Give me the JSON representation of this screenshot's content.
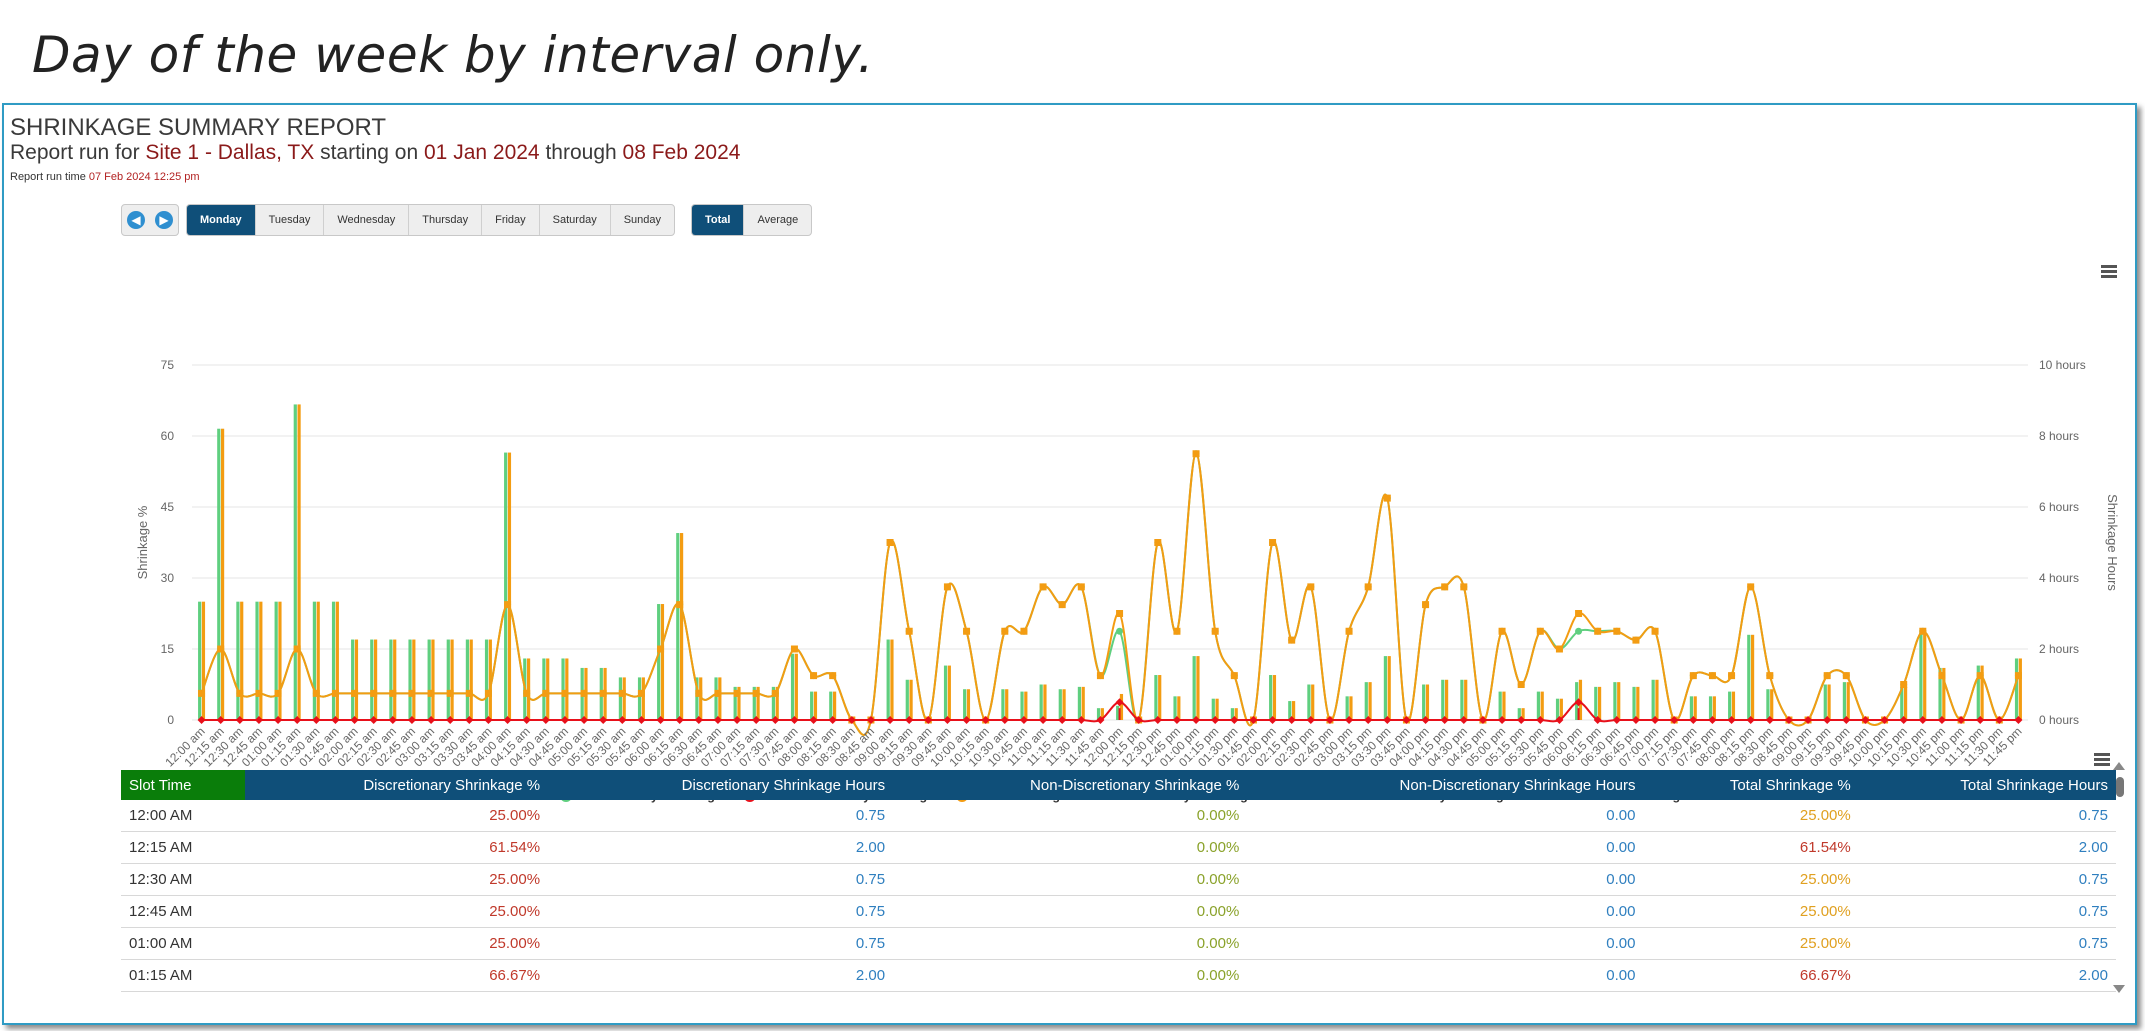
{
  "caption": "Day of the week by interval only.",
  "report": {
    "title": "SHRINKAGE SUMMARY REPORT",
    "run_for_label": "Report run for",
    "site": "Site 1 - Dallas, TX",
    "starting_label": "starting on",
    "start_date": "01 Jan 2024",
    "through_label": "through",
    "end_date": "08 Feb 2024",
    "run_time_label": "Report run time",
    "run_time": "07 Feb 2024 12:25 pm"
  },
  "nav": {
    "prev_icon": "arrow-left-icon",
    "next_icon": "arrow-right-icon"
  },
  "days": [
    "Monday",
    "Tuesday",
    "Wednesday",
    "Thursday",
    "Friday",
    "Saturday",
    "Sunday"
  ],
  "selected_day": "Monday",
  "modes": [
    "Total",
    "Average"
  ],
  "selected_mode": "Total",
  "colors": {
    "discretionary": "#5fcf7f",
    "non_discretionary": "#e8101a",
    "total": "#f39c12",
    "header": "#0f4f79",
    "slot_header": "#0a7d0a"
  },
  "chart_data": {
    "type": "bar",
    "xlabel": "",
    "ylabel": "Shrinkage %",
    "y2label": "Shrinkage Hours",
    "ylim": [
      0,
      75
    ],
    "y_ticks": [
      "0",
      "15",
      "30",
      "45",
      "60",
      "75"
    ],
    "y2lim": [
      0,
      10
    ],
    "y2_ticks": [
      "0 hours",
      "2 hours",
      "4 hours",
      "6 hours",
      "8 hours",
      "10 hours"
    ],
    "grid": true,
    "legend_position": "bottom",
    "categories": [
      "12:00 am",
      "12:15 am",
      "12:30 am",
      "12:45 am",
      "01:00 am",
      "01:15 am",
      "01:30 am",
      "01:45 am",
      "02:00 am",
      "02:15 am",
      "02:30 am",
      "02:45 am",
      "03:00 am",
      "03:15 am",
      "03:30 am",
      "03:45 am",
      "04:00 am",
      "04:15 am",
      "04:30 am",
      "04:45 am",
      "05:00 am",
      "05:15 am",
      "05:30 am",
      "05:45 am",
      "06:00 am",
      "06:15 am",
      "06:30 am",
      "06:45 am",
      "07:00 am",
      "07:15 am",
      "07:30 am",
      "07:45 am",
      "08:00 am",
      "08:15 am",
      "08:30 am",
      "08:45 am",
      "09:00 am",
      "09:15 am",
      "09:30 am",
      "09:45 am",
      "10:00 am",
      "10:15 am",
      "10:30 am",
      "10:45 am",
      "11:00 am",
      "11:15 am",
      "11:30 am",
      "11:45 am",
      "12:00 pm",
      "12:15 pm",
      "12:30 pm",
      "12:45 pm",
      "01:00 pm",
      "01:15 pm",
      "01:30 pm",
      "01:45 pm",
      "02:00 pm",
      "02:15 pm",
      "02:30 pm",
      "02:45 pm",
      "03:00 pm",
      "03:15 pm",
      "03:30 pm",
      "03:45 pm",
      "04:00 pm",
      "04:15 pm",
      "04:30 pm",
      "04:45 pm",
      "05:00 pm",
      "05:15 pm",
      "05:30 pm",
      "05:45 pm",
      "06:00 pm",
      "06:15 pm",
      "06:30 pm",
      "06:45 pm",
      "07:00 pm",
      "07:15 pm",
      "07:30 pm",
      "07:45 pm",
      "08:00 pm",
      "08:15 pm",
      "08:30 pm",
      "08:45 pm",
      "09:00 pm",
      "09:15 pm",
      "09:30 pm",
      "09:45 pm",
      "10:00 pm",
      "10:15 pm",
      "10:30 pm",
      "10:45 pm",
      "11:00 pm",
      "11:15 pm",
      "11:30 pm",
      "11:45 pm"
    ],
    "series": [
      {
        "name": "Discretionary Shrinkage",
        "kind": "bar",
        "axis": "left",
        "values": [
          25,
          61.54,
          25,
          25,
          25,
          66.67,
          25,
          25,
          17,
          17,
          17,
          17,
          17,
          17,
          17,
          17,
          56.5,
          13,
          13,
          13,
          11,
          11,
          9,
          9,
          24.5,
          39.5,
          9,
          9,
          7,
          7,
          7,
          14,
          6,
          6,
          0,
          0,
          17,
          8.5,
          0,
          11.5,
          6.5,
          0,
          6.5,
          6,
          7.5,
          6.5,
          7,
          2.5,
          3,
          0,
          9.5,
          5,
          13.5,
          4.5,
          2.5,
          0,
          9.5,
          4,
          7.5,
          0,
          5,
          8,
          13.5,
          0,
          7.5,
          8.5,
          8.5,
          0,
          6,
          2.5,
          6,
          4.5,
          8,
          7,
          8,
          7,
          8.5,
          0,
          5,
          5,
          6,
          18,
          6.5,
          0,
          0,
          7.5,
          8,
          0,
          0,
          7,
          19,
          11,
          0,
          11.5,
          0,
          13
        ]
      },
      {
        "name": "Non-Discretionary Shrinkage",
        "kind": "bar",
        "axis": "left",
        "values": [
          0,
          0,
          0,
          0,
          0,
          0,
          0,
          0,
          0,
          0,
          0,
          0,
          0,
          0,
          0,
          0,
          0,
          0,
          0,
          0,
          0,
          0,
          0,
          0,
          0,
          0,
          0,
          0,
          0,
          0,
          0,
          0,
          0,
          0,
          0,
          0,
          0,
          0,
          0,
          0,
          0,
          0,
          0,
          0,
          0,
          0,
          0,
          0,
          2.5,
          0,
          0,
          0,
          0,
          0,
          0,
          0,
          0,
          0,
          0,
          0,
          0,
          0,
          0,
          0,
          0,
          0,
          0,
          0,
          0,
          0,
          0,
          0,
          2.5,
          0,
          0,
          0,
          0,
          0,
          0,
          0,
          0,
          0,
          0,
          0,
          0,
          0,
          0,
          0,
          0,
          0,
          0,
          0,
          0,
          0,
          0,
          0
        ]
      },
      {
        "name": "Total Shrinkage",
        "kind": "bar",
        "axis": "left",
        "values": [
          25,
          61.54,
          25,
          25,
          25,
          66.67,
          25,
          25,
          17,
          17,
          17,
          17,
          17,
          17,
          17,
          17,
          56.5,
          13,
          13,
          13,
          11,
          11,
          9,
          9,
          24.5,
          39.5,
          9,
          9,
          7,
          7,
          7,
          14,
          6,
          6,
          0,
          0,
          17,
          8.5,
          0,
          11.5,
          6.5,
          0,
          6.5,
          6,
          7.5,
          6.5,
          7,
          2.5,
          5.5,
          0,
          9.5,
          5,
          13.5,
          4.5,
          2.5,
          0,
          9.5,
          4,
          7.5,
          0,
          5,
          8,
          13.5,
          0,
          7.5,
          8.5,
          8.5,
          0,
          6,
          2.5,
          6,
          4.5,
          8.5,
          7,
          8,
          7,
          8.5,
          0,
          5,
          5,
          6,
          18,
          6.5,
          0,
          0,
          7.5,
          8,
          0,
          0,
          7,
          19,
          11,
          0,
          11.5,
          0,
          13
        ]
      },
      {
        "name": "Discretionary Shrinkage Hours",
        "kind": "line",
        "axis": "right",
        "marker": "circle",
        "values": [
          0.75,
          2,
          0.75,
          0.75,
          0.75,
          2,
          0.75,
          0.75,
          0.75,
          0.75,
          0.75,
          0.75,
          0.75,
          0.75,
          0.75,
          0.75,
          3.25,
          0.75,
          0.75,
          0.75,
          0.75,
          0.75,
          0.75,
          0.75,
          2,
          3.25,
          0.75,
          0.75,
          0.75,
          0.75,
          0.75,
          2,
          1.25,
          1.25,
          0,
          0,
          5,
          2.5,
          0,
          3.75,
          2.5,
          0,
          2.5,
          2.5,
          3.75,
          3.25,
          3.75,
          1.25,
          2.5,
          0,
          5,
          2.5,
          7.5,
          2.5,
          1.25,
          0,
          5,
          2.25,
          3.75,
          0,
          2.5,
          3.75,
          6.25,
          0,
          3.25,
          3.75,
          3.75,
          0,
          2.5,
          1,
          2.5,
          2,
          2.5,
          2.5,
          2.5,
          2.25,
          2.5,
          0,
          1.25,
          1.25,
          1.25,
          3.75,
          1.25,
          0,
          0,
          1.25,
          1.25,
          0,
          0,
          1,
          2.5,
          1.25,
          0,
          1.25,
          0,
          1.25
        ]
      },
      {
        "name": "Non-Discretionary Shrinkage Hours",
        "kind": "line",
        "axis": "right",
        "marker": "diamond",
        "values": [
          0,
          0,
          0,
          0,
          0,
          0,
          0,
          0,
          0,
          0,
          0,
          0,
          0,
          0,
          0,
          0,
          0,
          0,
          0,
          0,
          0,
          0,
          0,
          0,
          0,
          0,
          0,
          0,
          0,
          0,
          0,
          0,
          0,
          0,
          0,
          0,
          0,
          0,
          0,
          0,
          0,
          0,
          0,
          0,
          0,
          0,
          0,
          0,
          0.5,
          0,
          0,
          0,
          0,
          0,
          0,
          0,
          0,
          0,
          0,
          0,
          0,
          0,
          0,
          0,
          0,
          0,
          0,
          0,
          0,
          0,
          0,
          0,
          0.5,
          0,
          0,
          0,
          0,
          0,
          0,
          0,
          0,
          0,
          0,
          0,
          0,
          0,
          0,
          0,
          0,
          0,
          0,
          0,
          0,
          0,
          0,
          0
        ]
      },
      {
        "name": "Total Shrinkage Hours",
        "kind": "line",
        "axis": "right",
        "marker": "square",
        "values": [
          0.75,
          2,
          0.75,
          0.75,
          0.75,
          2,
          0.75,
          0.75,
          0.75,
          0.75,
          0.75,
          0.75,
          0.75,
          0.75,
          0.75,
          0.75,
          3.25,
          0.75,
          0.75,
          0.75,
          0.75,
          0.75,
          0.75,
          0.75,
          2,
          3.25,
          0.75,
          0.75,
          0.75,
          0.75,
          0.75,
          2,
          1.25,
          1.25,
          0,
          0,
          5,
          2.5,
          0,
          3.75,
          2.5,
          0,
          2.5,
          2.5,
          3.75,
          3.25,
          3.75,
          1.25,
          3,
          0,
          5,
          2.5,
          7.5,
          2.5,
          1.25,
          0,
          5,
          2.25,
          3.75,
          0,
          2.5,
          3.75,
          6.25,
          0,
          3.25,
          3.75,
          3.75,
          0,
          2.5,
          1,
          2.5,
          2,
          3,
          2.5,
          2.5,
          2.25,
          2.5,
          0,
          1.25,
          1.25,
          1.25,
          3.75,
          1.25,
          0,
          0,
          1.25,
          1.25,
          0,
          0,
          1,
          2.5,
          1.25,
          0,
          1.25,
          0,
          1.25
        ]
      }
    ]
  },
  "table": {
    "columns": [
      "Slot Time",
      "Discretionary Shrinkage %",
      "Discretionary Shrinkage Hours",
      "Non-Discretionary Shrinkage %",
      "Non-Discretionary Shrinkage Hours",
      "Total Shrinkage %",
      "Total Shrinkage Hours"
    ],
    "rows": [
      [
        "12:00 AM",
        "25.00%",
        "0.75",
        "0.00%",
        "0.00",
        "25.00%",
        "0.75"
      ],
      [
        "12:15 AM",
        "61.54%",
        "2.00",
        "0.00%",
        "0.00",
        "61.54%",
        "2.00"
      ],
      [
        "12:30 AM",
        "25.00%",
        "0.75",
        "0.00%",
        "0.00",
        "25.00%",
        "0.75"
      ],
      [
        "12:45 AM",
        "25.00%",
        "0.75",
        "0.00%",
        "0.00",
        "25.00%",
        "0.75"
      ],
      [
        "01:00 AM",
        "25.00%",
        "0.75",
        "0.00%",
        "0.00",
        "25.00%",
        "0.75"
      ],
      [
        "01:15 AM",
        "66.67%",
        "2.00",
        "0.00%",
        "0.00",
        "66.67%",
        "2.00"
      ]
    ],
    "total_pct_colors": [
      "gold",
      "red",
      "gold",
      "gold",
      "gold",
      "red"
    ]
  }
}
